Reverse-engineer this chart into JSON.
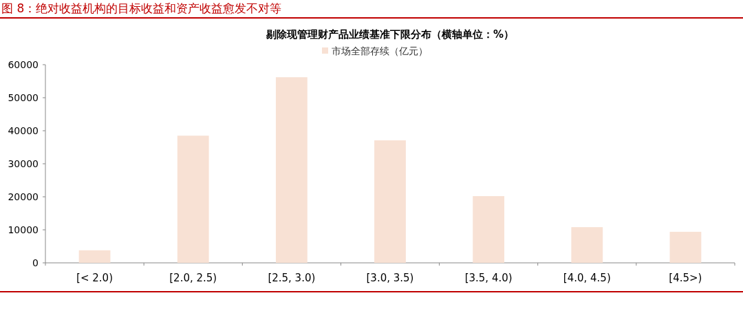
{
  "chart_data": {
    "type": "bar",
    "title": "图 8：绝对收益机构的目标收益和资产收益愈发不对等",
    "subtitle": "剔除现管理财产品业绩基准下限分布（横轴单位：%）",
    "categories": [
      "[< 2.0)",
      "[2.0, 2.5)",
      "[2.5, 3.0)",
      "[3.0, 3.5)",
      "[3.5, 4.0)",
      "[4.0, 4.5)",
      "[4.5>)"
    ],
    "series": [
      {
        "name": "市场全部存续（亿元）",
        "color": "#f8e1d4",
        "values": [
          3800,
          38500,
          56200,
          37100,
          20200,
          10800,
          9400
        ]
      }
    ],
    "ylim": [
      0,
      60000
    ],
    "yticks": [
      0,
      10000,
      20000,
      30000,
      40000,
      50000,
      60000
    ],
    "legend": "top"
  }
}
